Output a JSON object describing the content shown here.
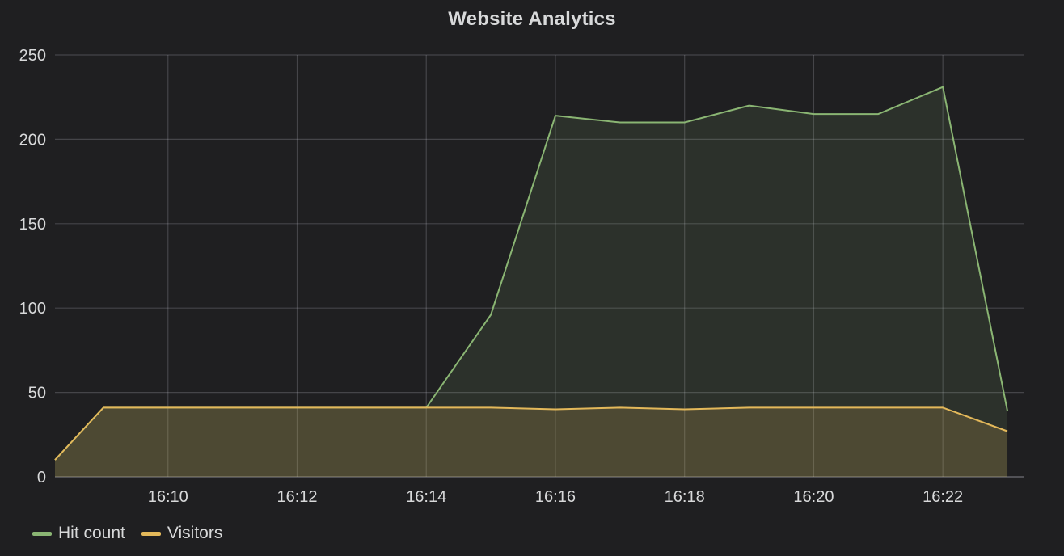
{
  "panel": {
    "title": "Website Analytics"
  },
  "chart_data": {
    "type": "area",
    "title": "Website Analytics",
    "xlabel": "",
    "ylabel": "",
    "x_tick_labels": [
      "16:10",
      "16:12",
      "16:14",
      "16:16",
      "16:18",
      "16:20",
      "16:22"
    ],
    "x_tick_minutes": [
      10,
      12,
      14,
      16,
      18,
      20,
      22
    ],
    "xlim_minutes": [
      8.25,
      23.25
    ],
    "y_ticks": [
      0,
      50,
      100,
      150,
      200,
      250
    ],
    "ylim": [
      0,
      250
    ],
    "grid": true,
    "legend_position": "bottom-left",
    "series": [
      {
        "name": "Hit count",
        "color": "#8ab573",
        "x_minutes": [
          8.25,
          9,
          10,
          11,
          12,
          13,
          14,
          15,
          16,
          17,
          18,
          19,
          20,
          21,
          22,
          23
        ],
        "values": [
          10,
          41,
          41,
          41,
          41,
          41,
          41,
          96,
          214,
          210,
          210,
          220,
          215,
          215,
          231,
          39
        ]
      },
      {
        "name": "Visitors",
        "color": "#e3b85a",
        "x_minutes": [
          8.25,
          9,
          10,
          11,
          12,
          13,
          14,
          15,
          16,
          17,
          18,
          19,
          20,
          21,
          22,
          23
        ],
        "values": [
          10,
          41,
          41,
          41,
          41,
          41,
          41,
          41,
          40,
          41,
          40,
          41,
          41,
          41,
          41,
          27
        ]
      }
    ]
  }
}
